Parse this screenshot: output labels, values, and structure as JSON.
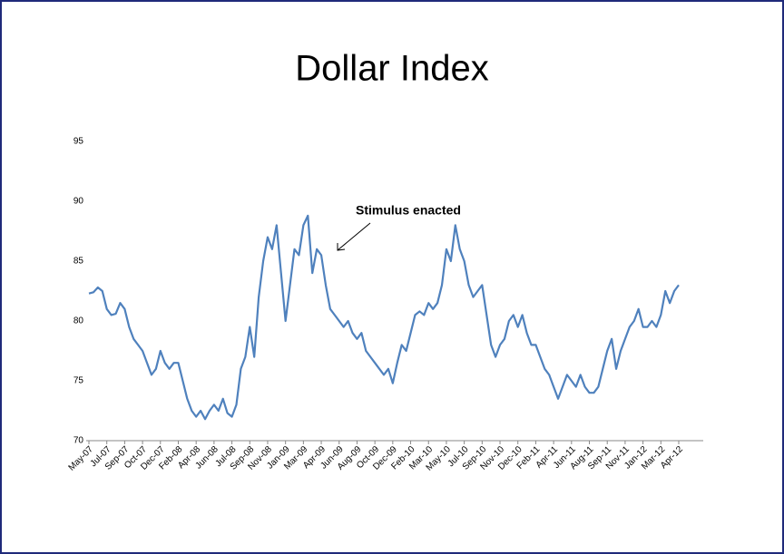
{
  "chart_data": {
    "type": "line",
    "title": "Dollar Index",
    "annotation": "Stimulus enacted",
    "categories": [
      "May-07",
      null,
      null,
      null,
      "Jul-07",
      null,
      null,
      null,
      "Sep-07",
      null,
      null,
      null,
      "Oct-07",
      null,
      null,
      null,
      "Dec-07",
      null,
      null,
      null,
      "Feb-08",
      null,
      null,
      null,
      "Apr-08",
      null,
      null,
      null,
      "Jun-08",
      null,
      null,
      null,
      "Jul-08",
      null,
      null,
      null,
      "Sep-08",
      null,
      null,
      null,
      "Nov-08",
      null,
      null,
      null,
      "Jan-09",
      null,
      null,
      null,
      "Mar-09",
      null,
      null,
      null,
      "Apr-09",
      null,
      null,
      null,
      "Jun-09",
      null,
      null,
      null,
      "Aug-09",
      null,
      null,
      null,
      "Oct-09",
      null,
      null,
      null,
      "Dec-09",
      null,
      null,
      null,
      "Feb-10",
      null,
      null,
      null,
      "Mar-10",
      null,
      null,
      null,
      "May-10",
      null,
      null,
      null,
      "Jul-10",
      null,
      null,
      null,
      "Sep-10",
      null,
      null,
      null,
      "Nov-10",
      null,
      null,
      null,
      "Dec-10",
      null,
      null,
      null,
      "Feb-11",
      null,
      null,
      null,
      "Apr-11",
      null,
      null,
      null,
      "Jun-11",
      null,
      null,
      null,
      "Aug-11",
      null,
      null,
      null,
      "Sep-11",
      null,
      null,
      null,
      "Nov-11",
      null,
      null,
      null,
      "Jan-12",
      null,
      null,
      null,
      "Mar-12",
      null,
      null,
      null,
      "Apr-12"
    ],
    "values": [
      82.3,
      82.4,
      82.8,
      82.5,
      81,
      80.5,
      80.6,
      81.5,
      81,
      79.5,
      78.5,
      78,
      77.5,
      76.5,
      75.5,
      76,
      77.5,
      76.5,
      76,
      76.5,
      76.5,
      75,
      73.5,
      72.5,
      72,
      72.5,
      71.8,
      72.5,
      73,
      72.5,
      73.5,
      72.3,
      72,
      73,
      76,
      77,
      79.5,
      77,
      82,
      85,
      87,
      86,
      88,
      84,
      80,
      83,
      86,
      85.5,
      88,
      88.8,
      84,
      86,
      85.5,
      83,
      81,
      80.5,
      80,
      79.5,
      80,
      79,
      78.5,
      79,
      77.5,
      77,
      76.5,
      76,
      75.5,
      76,
      74.8,
      76.5,
      78,
      77.5,
      79,
      80.5,
      80.8,
      80.5,
      81.5,
      81,
      81.5,
      83,
      86,
      85,
      88,
      86,
      85,
      83,
      82,
      82.5,
      83,
      80.5,
      78,
      77,
      78,
      78.5,
      80,
      80.5,
      79.5,
      80.5,
      79,
      78,
      78,
      77,
      76,
      75.5,
      74.5,
      73.5,
      74.5,
      75.5,
      75,
      74.5,
      75.5,
      74.5,
      74,
      74,
      74.5,
      76,
      77.5,
      78.5,
      76,
      77.5,
      78.5,
      79.5,
      80,
      81,
      79.5,
      79.5,
      80,
      79.5,
      80.5,
      82.5,
      81.5,
      82.5,
      83
    ],
    "color": "#4f81bd",
    "ylim": [
      70,
      95
    ],
    "yticks": [
      70,
      75,
      80,
      85,
      90,
      95
    ],
    "grid": false
  }
}
